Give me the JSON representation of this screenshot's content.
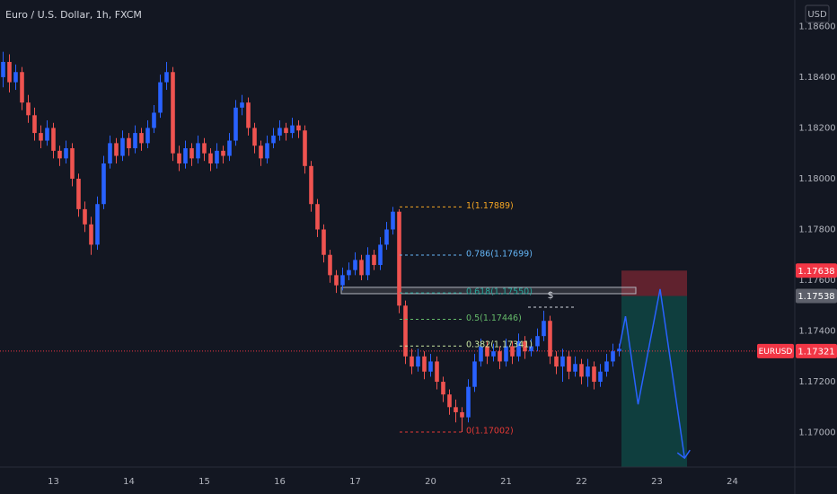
{
  "chart_data": {
    "type": "candlestick",
    "title": "Euro / U.S. Dollar, 1h, FXCM",
    "currency": "USD",
    "up_color": "#2962ff",
    "down_color": "#ef5350",
    "xlim": [
      -0.5,
      125.93
    ],
    "ylim": [
      1.16864,
      1.18704
    ],
    "xticks": [
      {
        "value": 8,
        "label": "13"
      },
      {
        "value": 20,
        "label": "14"
      },
      {
        "value": 32,
        "label": "15"
      },
      {
        "value": 44,
        "label": "16"
      },
      {
        "value": 56,
        "label": "17"
      },
      {
        "value": 68,
        "label": "20"
      },
      {
        "value": 80,
        "label": "21"
      },
      {
        "value": 92,
        "label": "22"
      },
      {
        "value": 104,
        "label": "23"
      },
      {
        "value": 116,
        "label": "24"
      }
    ],
    "yticks": [
      {
        "value": 1.17,
        "label": "1.17000"
      },
      {
        "value": 1.172,
        "label": "1.17200"
      },
      {
        "value": 1.174,
        "label": "1.17400"
      },
      {
        "value": 1.176,
        "label": "1.17600"
      },
      {
        "value": 1.178,
        "label": "1.17800"
      },
      {
        "value": 1.18,
        "label": "1.18000"
      },
      {
        "value": 1.182,
        "label": "1.18200"
      },
      {
        "value": 1.184,
        "label": "1.18400"
      },
      {
        "value": 1.186,
        "label": "1.18600"
      }
    ],
    "candles": [
      [
        1.184,
        1.185,
        1.1836,
        1.1846
      ],
      [
        1.1846,
        1.1849,
        1.1834,
        1.1838
      ],
      [
        1.1838,
        1.1845,
        1.1835,
        1.1842
      ],
      [
        1.1842,
        1.1844,
        1.1827,
        1.183
      ],
      [
        1.183,
        1.1833,
        1.1822,
        1.1825
      ],
      [
        1.1825,
        1.1828,
        1.1815,
        1.1818
      ],
      [
        1.1818,
        1.1821,
        1.1812,
        1.1815
      ],
      [
        1.1815,
        1.1823,
        1.1813,
        1.182
      ],
      [
        1.182,
        1.1822,
        1.1808,
        1.1811
      ],
      [
        1.1811,
        1.1813,
        1.1805,
        1.1808
      ],
      [
        1.1808,
        1.1815,
        1.1806,
        1.1812
      ],
      [
        1.1812,
        1.1814,
        1.1797,
        1.18
      ],
      [
        1.18,
        1.1802,
        1.1785,
        1.1788
      ],
      [
        1.1788,
        1.1791,
        1.1779,
        1.1782
      ],
      [
        1.1782,
        1.1785,
        1.177,
        1.1774
      ],
      [
        1.1774,
        1.1793,
        1.1772,
        1.179
      ],
      [
        1.179,
        1.1809,
        1.1788,
        1.1806
      ],
      [
        1.1806,
        1.1817,
        1.1804,
        1.1814
      ],
      [
        1.1814,
        1.1816,
        1.1806,
        1.1809
      ],
      [
        1.1809,
        1.1819,
        1.1807,
        1.1816
      ],
      [
        1.1816,
        1.1818,
        1.1809,
        1.1812
      ],
      [
        1.1812,
        1.1821,
        1.181,
        1.1818
      ],
      [
        1.1818,
        1.182,
        1.1811,
        1.1814
      ],
      [
        1.1814,
        1.1823,
        1.1812,
        1.182
      ],
      [
        1.182,
        1.1829,
        1.1818,
        1.1826
      ],
      [
        1.1826,
        1.1841,
        1.1824,
        1.1838
      ],
      [
        1.1838,
        1.1846,
        1.1835,
        1.1842
      ],
      [
        1.1842,
        1.1844,
        1.1807,
        1.181
      ],
      [
        1.181,
        1.1813,
        1.1803,
        1.1806
      ],
      [
        1.1806,
        1.1815,
        1.1804,
        1.1812
      ],
      [
        1.1812,
        1.1814,
        1.1805,
        1.1808
      ],
      [
        1.1808,
        1.1817,
        1.1806,
        1.1814
      ],
      [
        1.1814,
        1.1816,
        1.1807,
        1.181
      ],
      [
        1.181,
        1.1812,
        1.1803,
        1.1806
      ],
      [
        1.1806,
        1.1814,
        1.1804,
        1.1811
      ],
      [
        1.1811,
        1.1813,
        1.1806,
        1.1809
      ],
      [
        1.1809,
        1.1818,
        1.1807,
        1.1815
      ],
      [
        1.1815,
        1.1831,
        1.1813,
        1.1828
      ],
      [
        1.1828,
        1.1833,
        1.1825,
        1.183
      ],
      [
        1.183,
        1.1832,
        1.1817,
        1.182
      ],
      [
        1.182,
        1.1822,
        1.181,
        1.1813
      ],
      [
        1.1813,
        1.1815,
        1.1805,
        1.1808
      ],
      [
        1.1808,
        1.1817,
        1.1806,
        1.1814
      ],
      [
        1.1814,
        1.182,
        1.1812,
        1.1817
      ],
      [
        1.1817,
        1.1823,
        1.1815,
        1.182
      ],
      [
        1.182,
        1.1822,
        1.1815,
        1.1818
      ],
      [
        1.1818,
        1.1824,
        1.1816,
        1.1821
      ],
      [
        1.1821,
        1.1823,
        1.1816,
        1.1819
      ],
      [
        1.1819,
        1.1821,
        1.1802,
        1.1805
      ],
      [
        1.1805,
        1.1807,
        1.1787,
        1.179
      ],
      [
        1.179,
        1.1792,
        1.1777,
        1.178
      ],
      [
        1.178,
        1.1782,
        1.1767,
        1.177
      ],
      [
        1.177,
        1.1772,
        1.1759,
        1.1762
      ],
      [
        1.1762,
        1.1764,
        1.1755,
        1.1758
      ],
      [
        1.1758,
        1.1765,
        1.1756,
        1.1762
      ],
      [
        1.1762,
        1.1767,
        1.176,
        1.1764
      ],
      [
        1.1764,
        1.1771,
        1.1762,
        1.1768
      ],
      [
        1.1768,
        1.177,
        1.176,
        1.1762
      ],
      [
        1.1762,
        1.1773,
        1.176,
        1.177
      ],
      [
        1.177,
        1.1772,
        1.1764,
        1.1766
      ],
      [
        1.1766,
        1.1777,
        1.1764,
        1.1774
      ],
      [
        1.1774,
        1.1783,
        1.1772,
        1.178
      ],
      [
        1.178,
        1.17889,
        1.1778,
        1.1787
      ],
      [
        1.1787,
        1.1788,
        1.1747,
        1.175
      ],
      [
        1.175,
        1.1752,
        1.1727,
        1.173
      ],
      [
        1.173,
        1.1733,
        1.1723,
        1.1726
      ],
      [
        1.1726,
        1.1733,
        1.1724,
        1.173
      ],
      [
        1.173,
        1.1732,
        1.1721,
        1.1724
      ],
      [
        1.1724,
        1.1731,
        1.1722,
        1.1728
      ],
      [
        1.1728,
        1.173,
        1.1717,
        1.172
      ],
      [
        1.172,
        1.1722,
        1.1712,
        1.1715
      ],
      [
        1.1715,
        1.1717,
        1.1707,
        1.171
      ],
      [
        1.171,
        1.1713,
        1.1704,
        1.1708
      ],
      [
        1.1708,
        1.171,
        1.17002,
        1.1706
      ],
      [
        1.1706,
        1.1721,
        1.1704,
        1.1718
      ],
      [
        1.1718,
        1.1731,
        1.1716,
        1.1728
      ],
      [
        1.1728,
        1.1737,
        1.1726,
        1.1734
      ],
      [
        1.1734,
        1.1736,
        1.1727,
        1.173
      ],
      [
        1.173,
        1.1735,
        1.1728,
        1.1732
      ],
      [
        1.1732,
        1.1734,
        1.1725,
        1.1728
      ],
      [
        1.1728,
        1.1737,
        1.1726,
        1.1734
      ],
      [
        1.1734,
        1.1736,
        1.1727,
        1.173
      ],
      [
        1.173,
        1.1739,
        1.1728,
        1.1736
      ],
      [
        1.1736,
        1.1738,
        1.1729,
        1.1732
      ],
      [
        1.1732,
        1.1737,
        1.173,
        1.1734
      ],
      [
        1.1734,
        1.1741,
        1.1732,
        1.1738
      ],
      [
        1.1738,
        1.1748,
        1.1736,
        1.1744
      ],
      [
        1.1744,
        1.1746,
        1.1727,
        1.173
      ],
      [
        1.173,
        1.1732,
        1.1723,
        1.1726
      ],
      [
        1.1726,
        1.1733,
        1.172,
        1.173
      ],
      [
        1.173,
        1.1732,
        1.1721,
        1.1724
      ],
      [
        1.1724,
        1.173,
        1.1722,
        1.1727
      ],
      [
        1.1727,
        1.1729,
        1.1719,
        1.1722
      ],
      [
        1.1722,
        1.1729,
        1.1718,
        1.1726
      ],
      [
        1.1726,
        1.1728,
        1.1717,
        1.172
      ],
      [
        1.172,
        1.1727,
        1.1718,
        1.1724
      ],
      [
        1.1724,
        1.1731,
        1.1722,
        1.1728
      ],
      [
        1.1728,
        1.1735,
        1.1726,
        1.1732
      ],
      [
        1.1732,
        1.1735,
        1.173,
        1.1733
      ]
    ],
    "fib_levels": [
      {
        "label": "1(1.17889)",
        "value": 1.17889,
        "color": "#f5a623"
      },
      {
        "label": "0.786(1.17699)",
        "value": 1.17699,
        "color": "#64b5f6"
      },
      {
        "label": "0.618(1.17550)",
        "value": 1.1755,
        "color": "#26a69a"
      },
      {
        "label": "0.5(1.17446)",
        "value": 1.17446,
        "color": "#66bb6a"
      },
      {
        "label": "0.382(1.17341)",
        "value": 1.17341,
        "color": "#c8e6a0"
      },
      {
        "label": "0(1.17002)",
        "value": 1.17002,
        "color": "#e53935"
      }
    ],
    "zone": [
      1.17572,
      1.17547
    ],
    "marker": {
      "text": "$",
      "value": 1.17494
    },
    "position": {
      "stop": 1.17638,
      "entry": 1.17538,
      "target": 1.16864
    },
    "projection": {
      "x": [
        98,
        99,
        101,
        104.5,
        108.4
      ],
      "values": [
        1.17331,
        1.17458,
        1.17111,
        1.17565,
        1.16899
      ],
      "color": "#2962ff"
    },
    "price_tags": [
      {
        "label": "1.17638",
        "value": 1.17638,
        "color": "#f23645"
      },
      {
        "label": "1.17538",
        "value": 1.17538,
        "color": "#5d606b"
      }
    ],
    "last_price": {
      "symbol": "EURUSD",
      "label": "1.17321",
      "value": 1.17321,
      "color": "#f23645"
    }
  }
}
